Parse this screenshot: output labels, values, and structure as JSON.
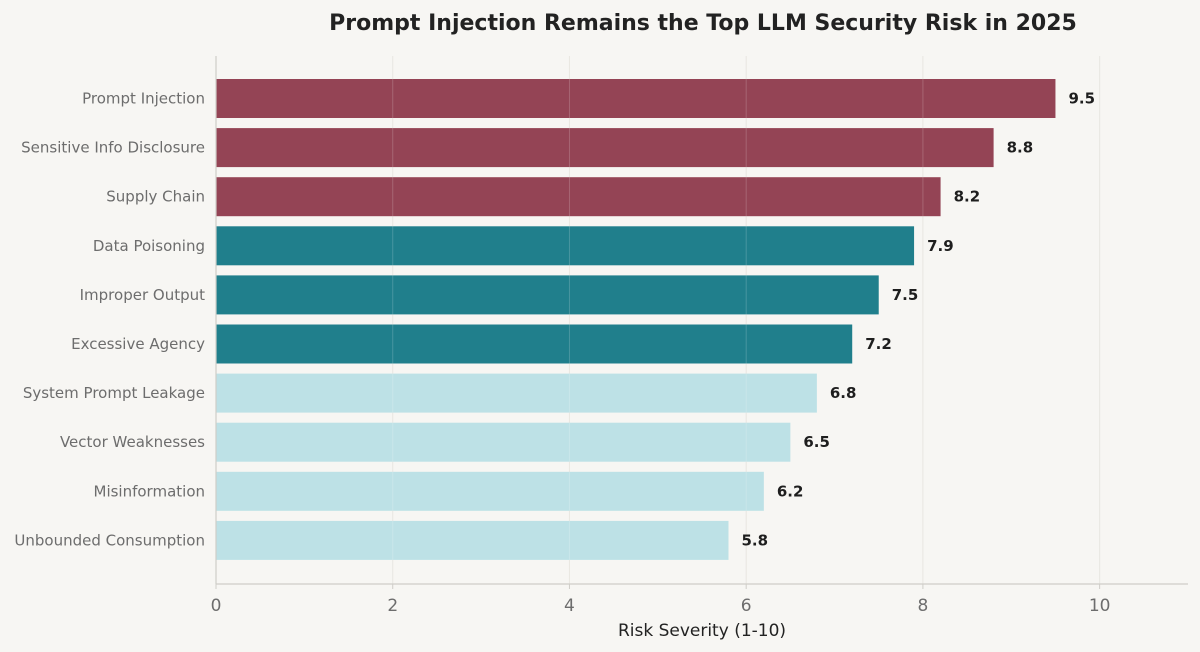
{
  "chart_data": {
    "type": "bar",
    "orientation": "horizontal",
    "title": "Prompt Injection Remains the Top LLM Security Risk in 2025",
    "xlabel": "Risk Severity (1-10)",
    "ylabel": "",
    "xlim": [
      0,
      11
    ],
    "xticks": [
      0,
      2,
      4,
      6,
      8,
      10
    ],
    "grid": "vertical",
    "categories": [
      "Prompt Injection",
      "Sensitive Info Disclosure",
      "Supply Chain",
      "Data Poisoning",
      "Improper Output",
      "Excessive Agency",
      "System Prompt Leakage",
      "Vector Weaknesses",
      "Misinformation",
      "Unbounded Consumption"
    ],
    "values": [
      9.5,
      8.8,
      8.2,
      7.9,
      7.5,
      7.2,
      6.8,
      6.5,
      6.2,
      5.8
    ],
    "value_labels": [
      "9.5",
      "8.8",
      "8.2",
      "7.9",
      "7.5",
      "7.2",
      "6.8",
      "6.5",
      "6.2",
      "5.8"
    ],
    "bar_colors": [
      "#944455",
      "#944455",
      "#944455",
      "#207f8c",
      "#207f8c",
      "#207f8c",
      "#bde1e6",
      "#bde1e6",
      "#bde1e6",
      "#bde1e6"
    ]
  },
  "colors": {
    "background": "#f7f6f3",
    "grid": "#e4e2dc",
    "axis": "#cfcdc8"
  }
}
